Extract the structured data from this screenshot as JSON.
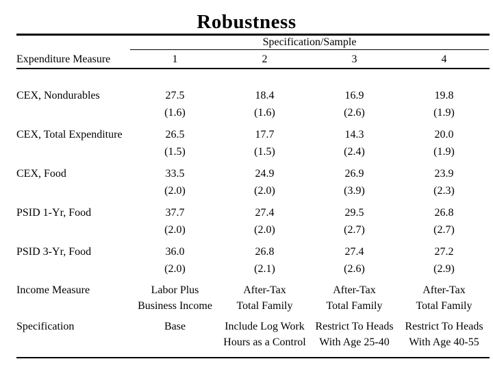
{
  "slide": {
    "title": "Robustness"
  },
  "table": {
    "group_header": "Specification/Sample",
    "row_header": "Expenditure Measure",
    "column_headers": [
      "1",
      "2",
      "3",
      "4"
    ],
    "rows": [
      {
        "label": "CEX, Nondurables",
        "values": [
          "27.5",
          "18.4",
          "16.9",
          "19.8"
        ],
        "se": [
          "(1.6)",
          "(1.6)",
          "(2.6)",
          "(1.9)"
        ]
      },
      {
        "label": "CEX, Total Expenditure",
        "values": [
          "26.5",
          "17.7",
          "14.3",
          "20.0"
        ],
        "se": [
          "(1.5)",
          "(1.5)",
          "(2.4)",
          "(1.9)"
        ]
      },
      {
        "label": "CEX, Food",
        "values": [
          "33.5",
          "24.9",
          "26.9",
          "23.9"
        ],
        "se": [
          "(2.0)",
          "(2.0)",
          "(3.9)",
          "(2.3)"
        ]
      },
      {
        "label": "PSID 1-Yr, Food",
        "values": [
          "37.7",
          "27.4",
          "29.5",
          "26.8"
        ],
        "se": [
          "(2.0)",
          "(2.0)",
          "(2.7)",
          "(2.7)"
        ]
      },
      {
        "label": "PSID 3-Yr, Food",
        "values": [
          "36.0",
          "26.8",
          "27.4",
          "27.2"
        ],
        "se": [
          "(2.0)",
          "(2.1)",
          "(2.6)",
          "(2.9)"
        ]
      }
    ],
    "income_measure": {
      "label": "Income Measure",
      "cells": [
        [
          "Labor Plus",
          "Business Income"
        ],
        [
          "After-Tax",
          "Total Family"
        ],
        [
          "After-Tax",
          "Total Family"
        ],
        [
          "After-Tax",
          "Total Family"
        ]
      ]
    },
    "specification": {
      "label": "Specification",
      "cells": [
        [
          "Base",
          ""
        ],
        [
          "Include Log Work",
          "Hours as a Control"
        ],
        [
          "Restrict To Heads",
          "With Age 25-40"
        ],
        [
          "Restrict To Heads",
          "With Age 40-55"
        ]
      ]
    }
  },
  "colors": {
    "background": "#ffffff",
    "text": "#000000",
    "rule": "#000000"
  }
}
